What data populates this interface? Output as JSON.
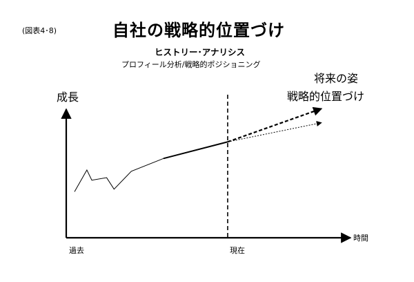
{
  "figure_label": "(図表4･8)",
  "title": "自社の戦略的位置づけ",
  "subtitle": "ヒストリー･アナリシス",
  "subtitle2": "プロフィール分析/戦略的ポジショニング",
  "future_label": [
    "将来の姿",
    "戦略的位置づけ"
  ],
  "y_axis_label": "成長",
  "x_axis_label": "時間",
  "x_labels": {
    "past": "過去",
    "present": "現在"
  },
  "colors": {
    "line": "#000000",
    "background": "#ffffff"
  },
  "chart_data": {
    "type": "line",
    "title": "",
    "xlabel": "時間",
    "ylabel": "成長",
    "grid": false,
    "history_thin": [
      [
        0,
        36
      ],
      [
        5,
        53
      ],
      [
        7,
        45
      ],
      [
        13,
        47
      ],
      [
        16,
        38
      ],
      [
        23,
        52
      ],
      [
        36,
        62
      ]
    ],
    "history_bold": [
      [
        36,
        62
      ],
      [
        62,
        75
      ]
    ],
    "projections": [
      {
        "style": "dashed-bold",
        "points": [
          [
            62,
            75
          ],
          [
            100,
            101
          ]
        ]
      },
      {
        "style": "dotted-thin",
        "points": [
          [
            62,
            75
          ],
          [
            100,
            90
          ]
        ]
      }
    ],
    "present_x": 62
  }
}
